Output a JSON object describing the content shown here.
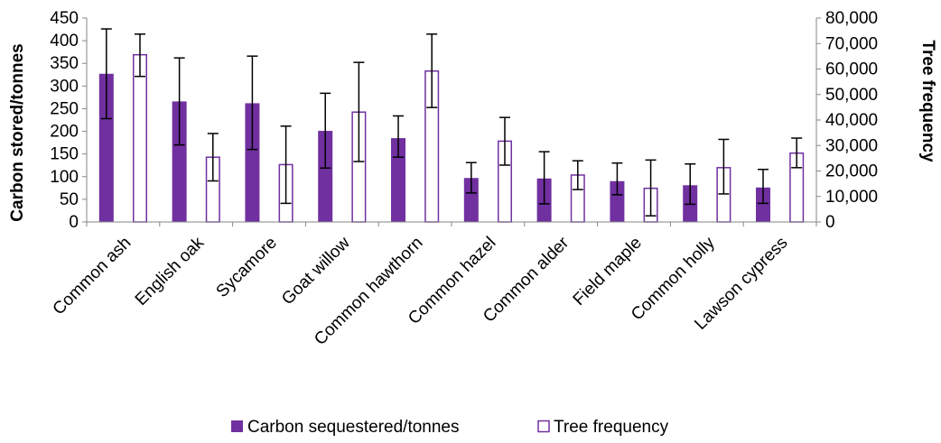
{
  "chart_data": {
    "type": "bar",
    "categories": [
      "Common ash",
      "English oak",
      "Sycamore",
      "Goat willow",
      "Common hawthorn",
      "Common hazel",
      "Common alder",
      "Field maple",
      "Common holly",
      "Lawson cypress"
    ],
    "series": [
      {
        "name": "Carbon sequestered/tonnes",
        "axis": "left",
        "values": [
          327,
          266,
          262,
          201,
          185,
          97,
          96,
          90,
          81,
          76
        ],
        "error_low": [
          228,
          170,
          160,
          119,
          143,
          64,
          40,
          60,
          39,
          41
        ],
        "error_high": [
          426,
          362,
          366,
          284,
          234,
          131,
          155,
          130,
          128,
          116
        ]
      },
      {
        "name": "Tree frequency",
        "axis": "right",
        "values": [
          65600,
          25400,
          22500,
          43100,
          59200,
          31700,
          18400,
          13200,
          21300,
          27000
        ],
        "error_low": [
          57100,
          16100,
          7300,
          23700,
          44900,
          22300,
          12700,
          2400,
          11000,
          21300
        ],
        "error_high": [
          73700,
          34700,
          37600,
          62600,
          73700,
          41000,
          24000,
          24300,
          32400,
          32900
        ]
      }
    ],
    "y_left": {
      "label": "Carbon stored/tonnes",
      "min": 0,
      "max": 450,
      "step": 50,
      "ticks": [
        "0",
        "50",
        "100",
        "150",
        "200",
        "250",
        "300",
        "350",
        "400",
        "450"
      ]
    },
    "y_right": {
      "label": "Tree frequency",
      "min": 0,
      "max": 80000,
      "step": 10000,
      "ticks": [
        "0",
        "10,000",
        "20,000",
        "30,000",
        "40,000",
        "50,000",
        "60,000",
        "70,000",
        "80,000"
      ]
    },
    "legend_position": "bottom",
    "grid": false,
    "colors": {
      "carbon_fill": "#7030a0",
      "frequency_fill": "#ffffff",
      "frequency_stroke": "#7030a0",
      "axis": "#868686",
      "error_bar": "#000000"
    }
  }
}
